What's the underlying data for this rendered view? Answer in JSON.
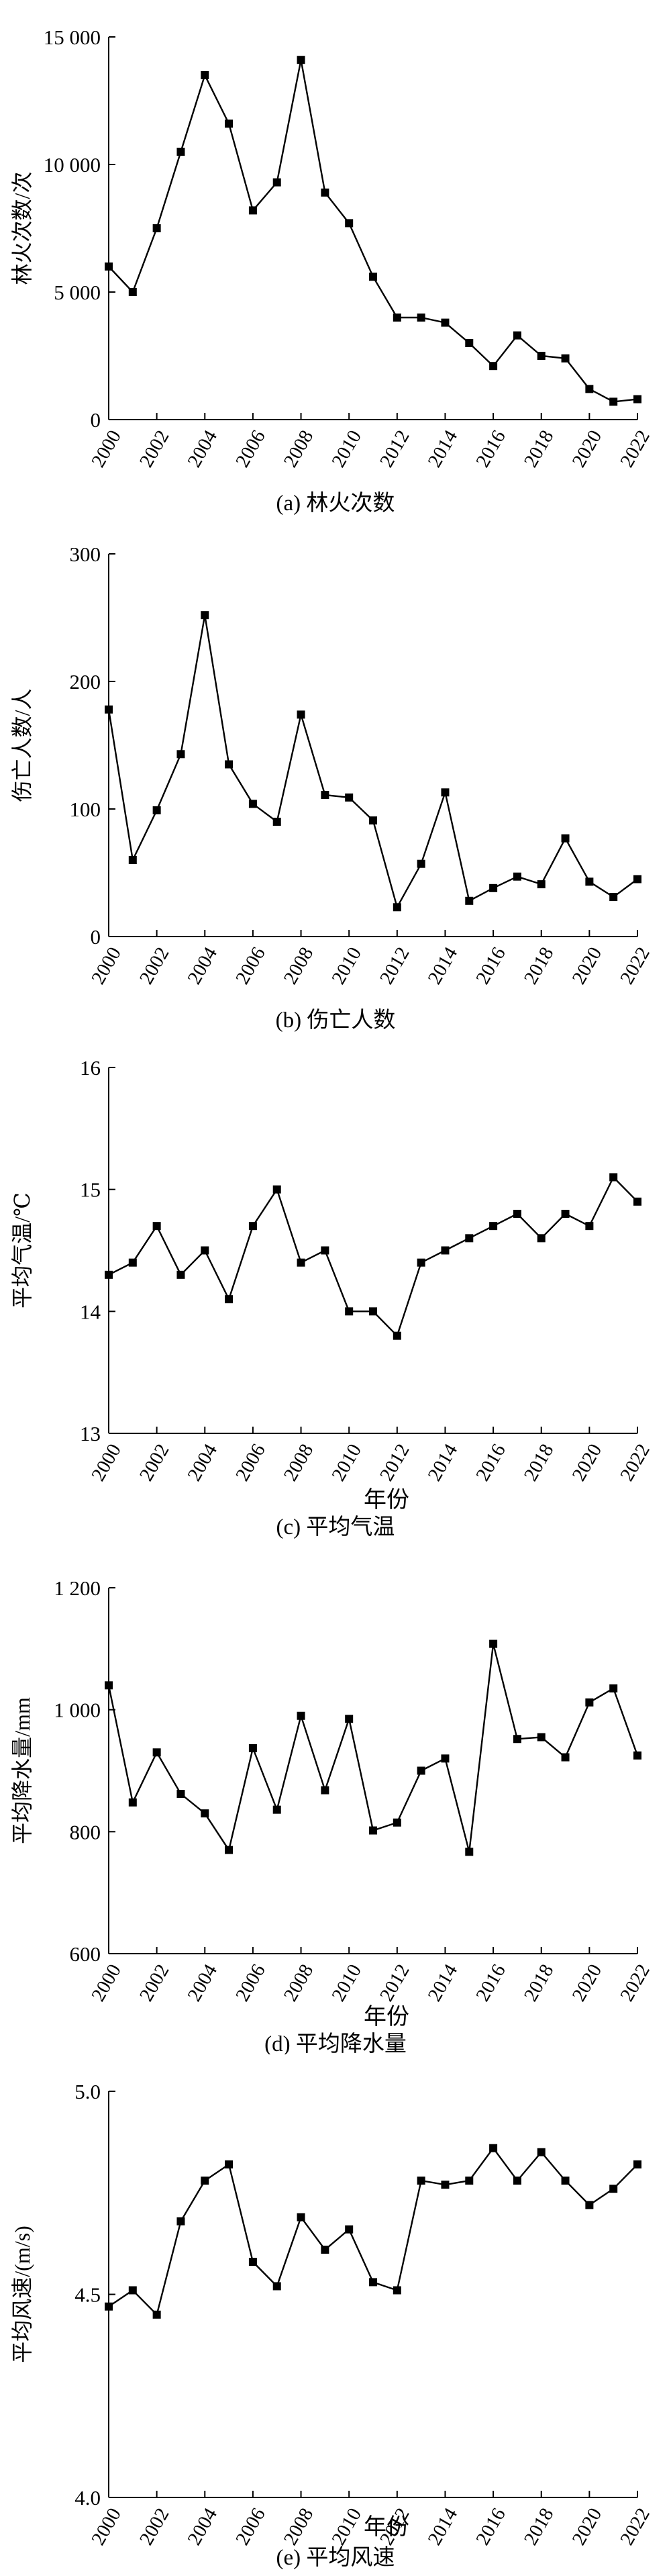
{
  "chart_data": [
    {
      "type": "line",
      "caption": "(a) 林火次数",
      "xlabel": "",
      "ylabel": "林火次数/次",
      "ylim": [
        0,
        15000
      ],
      "yticks": [
        0,
        5000,
        10000,
        15000
      ],
      "ytick_labels": [
        "0",
        "5 000",
        "10 000",
        "15 000"
      ],
      "xlim": [
        2000,
        2022
      ],
      "xticks": [
        2000,
        2002,
        2004,
        2006,
        2008,
        2010,
        2012,
        2014,
        2016,
        2018,
        2020,
        2022
      ],
      "xtick_labels": [
        "2000",
        "2002",
        "2004",
        "2006",
        "2008",
        "2010",
        "2012",
        "2014",
        "2016",
        "2018",
        "2020",
        "2022"
      ],
      "x": [
        2000,
        2001,
        2002,
        2003,
        2004,
        2005,
        2006,
        2007,
        2008,
        2009,
        2010,
        2011,
        2012,
        2013,
        2014,
        2015,
        2016,
        2017,
        2018,
        2019,
        2020,
        2021,
        2022
      ],
      "values": [
        6000,
        5000,
        7500,
        10500,
        13500,
        11600,
        8200,
        9300,
        14100,
        8900,
        7700,
        5600,
        4000,
        4000,
        3800,
        3000,
        2100,
        3300,
        2500,
        2400,
        1200,
        700,
        800
      ],
      "grid": false
    },
    {
      "type": "line",
      "caption": "(b) 伤亡人数",
      "xlabel": "",
      "ylabel": "伤亡人数/人",
      "ylim": [
        0,
        300
      ],
      "yticks": [
        0,
        100,
        200,
        300
      ],
      "ytick_labels": [
        "0",
        "100",
        "200",
        "300"
      ],
      "xlim": [
        2000,
        2022
      ],
      "xticks": [
        2000,
        2002,
        2004,
        2006,
        2008,
        2010,
        2012,
        2014,
        2016,
        2018,
        2020,
        2022
      ],
      "xtick_labels": [
        "2000",
        "2002",
        "2004",
        "2006",
        "2008",
        "2010",
        "2012",
        "2014",
        "2016",
        "2018",
        "2020",
        "2022"
      ],
      "x": [
        2000,
        2001,
        2002,
        2003,
        2004,
        2005,
        2006,
        2007,
        2008,
        2009,
        2010,
        2011,
        2012,
        2013,
        2014,
        2015,
        2016,
        2017,
        2018,
        2019,
        2020,
        2021,
        2022
      ],
      "values": [
        178,
        60,
        99,
        143,
        252,
        135,
        104,
        90,
        174,
        111,
        109,
        91,
        23,
        57,
        113,
        28,
        38,
        47,
        41,
        77,
        43,
        31,
        45
      ],
      "grid": false
    },
    {
      "type": "line",
      "caption": "(c) 平均气温",
      "xlabel": "年份",
      "ylabel": "平均气温/℃",
      "ylim": [
        13,
        16
      ],
      "yticks": [
        13,
        14,
        15,
        16
      ],
      "ytick_labels": [
        "13",
        "14",
        "15",
        "16"
      ],
      "xlim": [
        2000,
        2022
      ],
      "xticks": [
        2000,
        2002,
        2004,
        2006,
        2008,
        2010,
        2012,
        2014,
        2016,
        2018,
        2020,
        2022
      ],
      "xtick_labels": [
        "2000",
        "2002",
        "2004",
        "2006",
        "2008",
        "2010",
        "2012",
        "2014",
        "2016",
        "2018",
        "2020",
        "2022"
      ],
      "x": [
        2000,
        2001,
        2002,
        2003,
        2004,
        2005,
        2006,
        2007,
        2008,
        2009,
        2010,
        2011,
        2012,
        2013,
        2014,
        2015,
        2016,
        2017,
        2018,
        2019,
        2020,
        2021,
        2022
      ],
      "values": [
        14.3,
        14.4,
        14.7,
        14.3,
        14.5,
        14.1,
        14.7,
        15.0,
        14.4,
        14.5,
        14.0,
        14.0,
        13.8,
        14.4,
        14.5,
        14.6,
        14.7,
        14.8,
        14.6,
        14.8,
        14.7,
        15.1,
        14.9
      ],
      "grid": false
    },
    {
      "type": "line",
      "caption": "(d) 平均降水量",
      "xlabel": "年份",
      "ylabel": "平均降水量/mm",
      "ylim": [
        600,
        1200
      ],
      "yticks": [
        600,
        800,
        1000,
        1200
      ],
      "ytick_labels": [
        "600",
        "800",
        "1 000",
        "1 200"
      ],
      "xlim": [
        2000,
        2022
      ],
      "xticks": [
        2000,
        2002,
        2004,
        2006,
        2008,
        2010,
        2012,
        2014,
        2016,
        2018,
        2020,
        2022
      ],
      "xtick_labels": [
        "2000",
        "2002",
        "2004",
        "2006",
        "2008",
        "2010",
        "2012",
        "2014",
        "2016",
        "2018",
        "2020",
        "2022"
      ],
      "x": [
        2000,
        2001,
        2002,
        2003,
        2004,
        2005,
        2006,
        2007,
        2008,
        2009,
        2010,
        2011,
        2012,
        2013,
        2014,
        2015,
        2016,
        2017,
        2018,
        2019,
        2020,
        2021,
        2022
      ],
      "values": [
        1040,
        848,
        930,
        862,
        830,
        770,
        937,
        836,
        990,
        868,
        985,
        802,
        815,
        900,
        920,
        767,
        1108,
        952,
        955,
        922,
        1012,
        1035,
        925
      ],
      "grid": false
    },
    {
      "type": "line",
      "caption": "(e) 平均风速",
      "xlabel": "年份",
      "ylabel": "平均风速/(m/s)",
      "ylim": [
        4.0,
        5.0
      ],
      "yticks": [
        4.0,
        4.5,
        5.0
      ],
      "ytick_labels": [
        "4.0",
        "4.5",
        "5.0"
      ],
      "xlim": [
        2000,
        2022
      ],
      "xticks": [
        2000,
        2002,
        2004,
        2006,
        2008,
        2010,
        2012,
        2014,
        2016,
        2018,
        2020,
        2022
      ],
      "xtick_labels": [
        "2000",
        "2002",
        "2004",
        "2006",
        "2008",
        "2010",
        "2012",
        "2014",
        "2016",
        "2018",
        "2020",
        "2022"
      ],
      "x": [
        2000,
        2001,
        2002,
        2003,
        2004,
        2005,
        2006,
        2007,
        2008,
        2009,
        2010,
        2011,
        2012,
        2013,
        2014,
        2015,
        2016,
        2017,
        2018,
        2019,
        2020,
        2021,
        2022
      ],
      "values": [
        4.47,
        4.51,
        4.45,
        4.68,
        4.78,
        4.82,
        4.58,
        4.52,
        4.69,
        4.61,
        4.66,
        4.53,
        4.51,
        4.78,
        4.77,
        4.78,
        4.86,
        4.78,
        4.85,
        4.78,
        4.72,
        4.76,
        4.82
      ],
      "grid": false
    }
  ]
}
